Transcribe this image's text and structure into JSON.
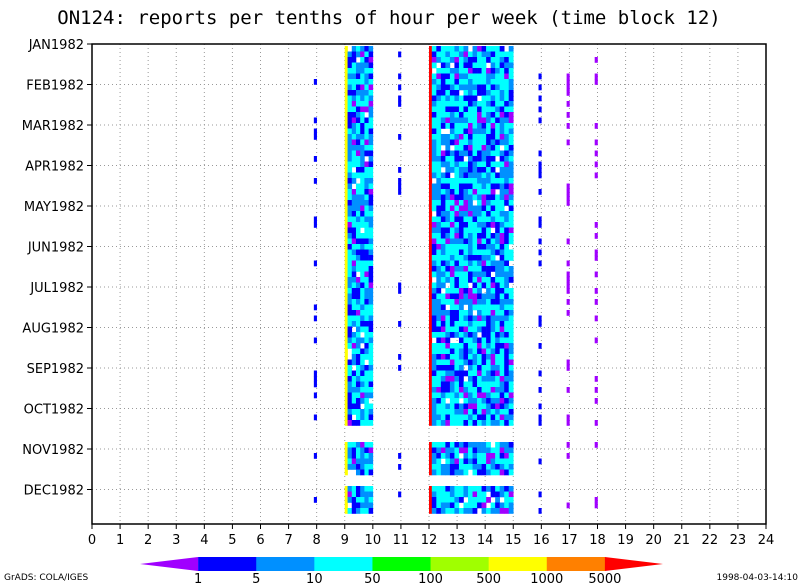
{
  "chart_data": {
    "type": "heatmap",
    "title": "ON124: reports per tenths of hour per week (time block 12)",
    "x_ticks": [
      "0",
      "1",
      "2",
      "3",
      "4",
      "5",
      "6",
      "7",
      "8",
      "9",
      "10",
      "11",
      "12",
      "13",
      "14",
      "15",
      "16",
      "17",
      "18",
      "19",
      "20",
      "21",
      "22",
      "23",
      "24"
    ],
    "xlim": [
      0,
      24
    ],
    "y_ticks": [
      "JAN1982",
      "FEB1982",
      "MAR1982",
      "APR1982",
      "MAY1982",
      "JUN1982",
      "JUL1982",
      "AUG1982",
      "SEP1982",
      "OCT1982",
      "NOV1982",
      "DEC1982"
    ],
    "ylim": [
      "JAN1982",
      "DEC1982"
    ],
    "grid": true,
    "colorbar": {
      "labels": [
        "1",
        "5",
        "10",
        "50",
        "100",
        "500",
        "1000",
        "5000"
      ],
      "colors": [
        "#a000ff",
        "#0000ff",
        "#0090ff",
        "#00ffff",
        "#00ff00",
        "#a0ff00",
        "#ffff00",
        "#ff8000",
        "#ff0000"
      ]
    },
    "bands": [
      {
        "x": [
          7.9,
          8.0
        ],
        "value_class": 1,
        "sparse": true
      },
      {
        "x": [
          9.0,
          9.1
        ],
        "value_class": 6
      },
      {
        "x": [
          9.1,
          10.0
        ],
        "value_class": 2
      },
      {
        "x": [
          10.9,
          11.0
        ],
        "value_class": 1,
        "sparse": true
      },
      {
        "x": [
          12.0,
          12.1
        ],
        "value_class": 8
      },
      {
        "x": [
          12.1,
          15.0
        ],
        "value_class": 2
      },
      {
        "x": [
          15.9,
          16.0
        ],
        "value_class": 1,
        "sparse": true
      },
      {
        "x": [
          16.9,
          17.0
        ],
        "value_class": 0,
        "sparse": true
      },
      {
        "x": [
          17.9,
          18.0
        ],
        "value_class": 0,
        "sparse": true
      }
    ]
  },
  "footer": {
    "left": "GrADS: COLA/IGES",
    "right": "1998-04-03-14:10"
  }
}
